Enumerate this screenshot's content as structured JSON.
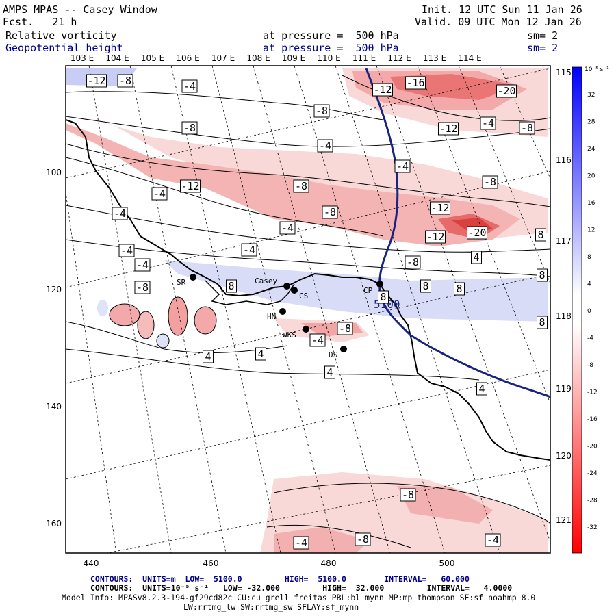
{
  "header": {
    "model": "AMPS MPAS -- Casey Window",
    "fcst": "Fcst.   21 h",
    "init": "Init. 12 UTC Sun 11 Jan 26",
    "valid": "Valid. 09 UTC Mon 12 Jan 26",
    "field1": "Relative vorticity",
    "field2": "Geopotential height",
    "pres1": "at pressure =  500 hPa",
    "pres2": "at pressure =  500 hPa",
    "sm1": "sm= 2",
    "sm2": "sm= 2"
  },
  "axes": {
    "x_ticks": [
      "440",
      "460",
      "480",
      "500"
    ],
    "y_ticks": [
      "100",
      "120",
      "140",
      "160"
    ],
    "lon_labels": [
      "103 E",
      "104 E",
      "105 E",
      "106 E",
      "107 E",
      "108 E",
      "109 E",
      "110 E",
      "111 E",
      "112 E",
      "113 E",
      "114 E"
    ],
    "lon_right": [
      "115 E",
      "116 E",
      "117 E",
      "118 E",
      "119 E",
      "120 E",
      "121 E"
    ]
  },
  "colorbar": {
    "unit": "10⁻⁵ s⁻¹",
    "labels": [
      "32",
      "28",
      "24",
      "20",
      "16",
      "12",
      "8",
      "4",
      "0",
      "-4",
      "-8",
      "-12",
      "-16",
      "-20",
      "-24",
      "-28",
      "-32"
    ]
  },
  "stations": [
    {
      "name": "SR"
    },
    {
      "name": "Casey"
    },
    {
      "name": "CS"
    },
    {
      "name": "HN"
    },
    {
      "name": "WKS"
    },
    {
      "name": "DS"
    },
    {
      "name": "CP"
    }
  ],
  "contour_labels": [
    "-12",
    "-8",
    "-4",
    "-8",
    "-4",
    "-12",
    "-16",
    "-20",
    "-8",
    "-4",
    "-12",
    "-8",
    "-4",
    "-4",
    "-12",
    "-8",
    "-8",
    "-4",
    "-12",
    "-20",
    "-12",
    "-4",
    "-8",
    "-8",
    "-4",
    "-4",
    "-4",
    "-8",
    "8",
    "8",
    "8",
    "8",
    "8",
    "8",
    "-4",
    "-8",
    "4",
    "4",
    "4",
    "4",
    "4",
    "-8",
    "-4",
    "-8",
    "-4",
    "8"
  ],
  "height_label": "5100",
  "footer": {
    "line1": "CONTOURS:  UNITS=m  LOW=  5100.0         HIGH=  5100.0        INTERVAL=   60.000",
    "line2": "CONTOURS:  UNITS=10⁻⁵ s⁻¹   LOW= -32.000         HIGH=  32.000         INTERVAL=   4.0000",
    "line3": "Model Info: MPASv8.2.3-194-gf29cd82c CU:cu_grell_freitas PBL:bl_mynn MP:mp_thompson SF:sf_noahmp 8.0",
    "line4": "LW:rrtmg_lw SW:rrtmg_sw SFLAY:sf_mynn"
  }
}
